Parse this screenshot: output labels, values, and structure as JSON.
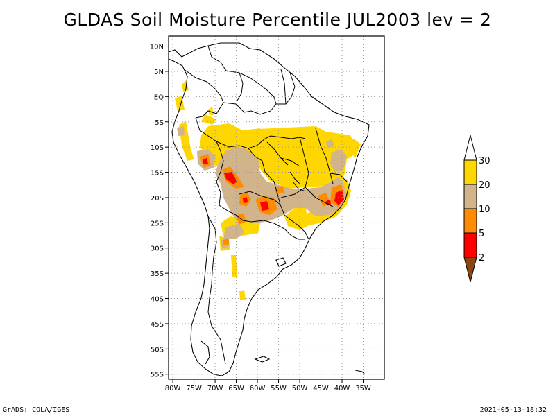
{
  "title": "GLDAS Soil Moisture Percentile JUL2003 lev = 2",
  "footer": {
    "left": "GrADS: COLA/IGES",
    "right": "2021-05-13-18:32"
  },
  "map": {
    "lon_range": [
      -81,
      -30
    ],
    "lat_range": [
      -56,
      12
    ],
    "lat_ticks": [
      {
        "value": 10,
        "label": "10N"
      },
      {
        "value": 5,
        "label": "5N"
      },
      {
        "value": 0,
        "label": "EQ"
      },
      {
        "value": -5,
        "label": "5S"
      },
      {
        "value": -10,
        "label": "10S"
      },
      {
        "value": -15,
        "label": "15S"
      },
      {
        "value": -20,
        "label": "20S"
      },
      {
        "value": -25,
        "label": "25S"
      },
      {
        "value": -30,
        "label": "30S"
      },
      {
        "value": -35,
        "label": "35S"
      },
      {
        "value": -40,
        "label": "40S"
      },
      {
        "value": -45,
        "label": "45S"
      },
      {
        "value": -50,
        "label": "50S"
      },
      {
        "value": -55,
        "label": "55S"
      }
    ],
    "lon_ticks": [
      {
        "value": -80,
        "label": "80W"
      },
      {
        "value": -75,
        "label": "75W"
      },
      {
        "value": -70,
        "label": "70W"
      },
      {
        "value": -65,
        "label": "65W"
      },
      {
        "value": -60,
        "label": "60W"
      },
      {
        "value": -55,
        "label": "55W"
      },
      {
        "value": -50,
        "label": "50W"
      },
      {
        "value": -45,
        "label": "45W"
      },
      {
        "value": -40,
        "label": "40W"
      },
      {
        "value": -35,
        "label": "35W"
      }
    ],
    "grid": true
  },
  "colorbar": {
    "colors": {
      "below_2": "#8b4513",
      "2_5": "#ff0000",
      "5_10": "#ff8c00",
      "10_20": "#d2b48c",
      "20_30": "#ffd700",
      "above_30": "#ffffff"
    },
    "labels": [
      "2",
      "5",
      "10",
      "20",
      "30"
    ]
  }
}
